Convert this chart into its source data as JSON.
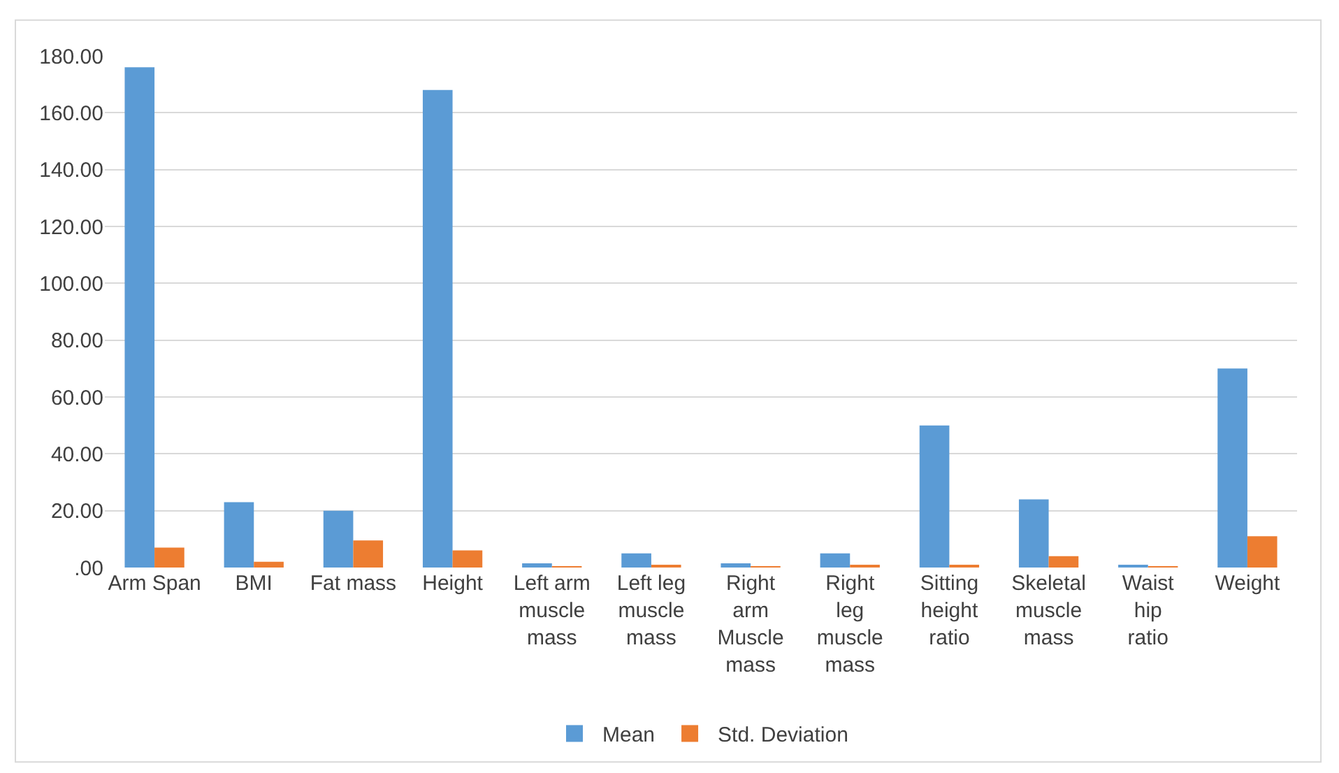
{
  "chart_data": {
    "type": "bar",
    "categories": [
      "Arm Span",
      "BMI",
      "Fat mass",
      "Height",
      "Left arm muscle mass",
      "Left leg muscle mass",
      "Right arm Muscle mass",
      "Right leg muscle mass",
      "Sitting height ratio",
      "Skeletal muscle mass",
      "Waist hip ratio",
      "Weight"
    ],
    "series": [
      {
        "name": "Mean",
        "color": "#5b9bd5",
        "values": [
          176,
          23,
          20,
          168,
          1.5,
          5,
          1.5,
          5,
          50,
          24,
          0.9,
          70
        ]
      },
      {
        "name": "Std. Deviation",
        "color": "#ed7d31",
        "values": [
          7,
          2,
          9.5,
          6,
          0.3,
          0.6,
          0.3,
          0.6,
          1,
          4,
          0.1,
          11
        ]
      }
    ],
    "ylim": [
      0,
      180
    ],
    "yticks": [
      {
        "value": 0,
        "label": ".00"
      },
      {
        "value": 20,
        "label": "20.00"
      },
      {
        "value": 40,
        "label": "40.00"
      },
      {
        "value": 60,
        "label": "60.00"
      },
      {
        "value": 80,
        "label": "80.00"
      },
      {
        "value": 100,
        "label": "100.00"
      },
      {
        "value": 120,
        "label": "120.00"
      },
      {
        "value": 140,
        "label": "140.00"
      },
      {
        "value": 160,
        "label": "160.00"
      },
      {
        "value": 180,
        "label": "180.00"
      }
    ],
    "grid": "y",
    "legend": "bottom"
  }
}
